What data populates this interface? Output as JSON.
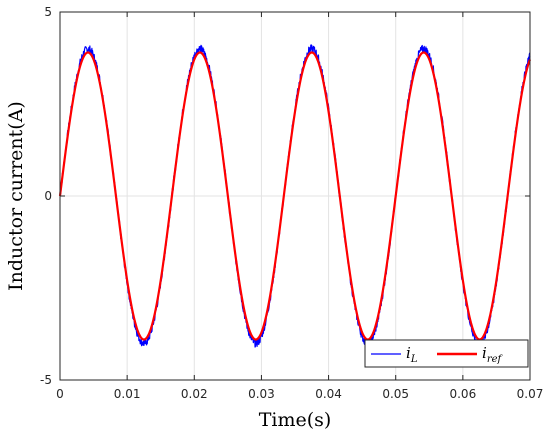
{
  "chart_data": {
    "type": "line",
    "xlabel": "Time(s)",
    "ylabel": "Inductor current(A)",
    "xlim": [
      0,
      0.07
    ],
    "ylim": [
      -5,
      5
    ],
    "x_ticks": [
      "0",
      "0.01",
      "0.02",
      "0.03",
      "0.04",
      "0.05",
      "0.06",
      "0.07"
    ],
    "y_ticks": [
      "-5",
      "0",
      "5"
    ],
    "grid": true,
    "legend_position": "bottom-right",
    "frequency_hz": 60,
    "series": [
      {
        "name": "i_L",
        "legend_main": "i",
        "legend_sub": "L",
        "amplitude": 4.0,
        "color": "#0000ff",
        "style": "noisy"
      },
      {
        "name": "i_ref",
        "legend_main": "i",
        "legend_sub": "ref",
        "amplitude": 3.9,
        "color": "#ff0000",
        "style": "smooth"
      }
    ]
  }
}
